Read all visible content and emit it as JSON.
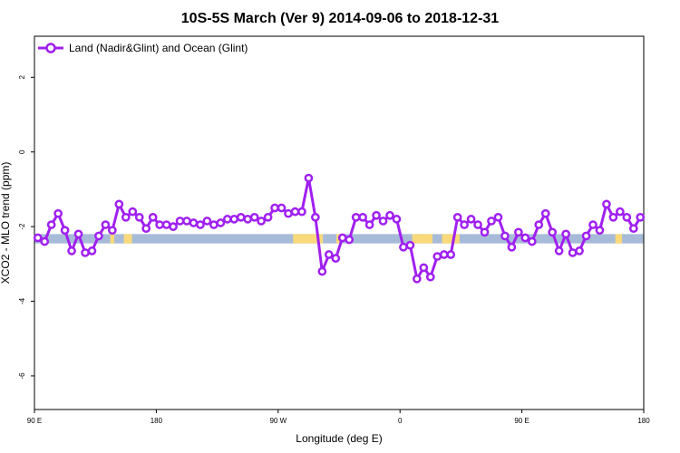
{
  "chart_data": {
    "type": "line",
    "title": "10S-5S March (Ver 9)   2014-09-06 to 2018-12-31",
    "xlabel": "Longitude (deg E)",
    "ylabel": "XCO2 - MLO trend (ppm)",
    "x_tick_positions": [
      90,
      180,
      270,
      360,
      450,
      540
    ],
    "x_tick_labels": [
      "90 E",
      "180",
      "90 W",
      "0",
      "90 E",
      "180"
    ],
    "xlim": [
      90,
      540
    ],
    "y_ticks": [
      2,
      0,
      -2,
      -4,
      -6
    ],
    "y_tick_labels": [
      "2",
      "0",
      "-2",
      "-4",
      "-6"
    ],
    "ylim": [
      -6.9,
      3.1
    ],
    "legend": {
      "position": "top-left"
    },
    "colors": {
      "series": "#a020f0",
      "ocean_band": "#a7bbd9",
      "land_band": "#f9d97a"
    },
    "land_mask": {
      "y_range": [
        -2.45,
        -2.2
      ],
      "land_segments": [
        [
          146,
          149
        ],
        [
          156,
          162
        ],
        [
          281,
          303
        ],
        [
          313,
          317
        ],
        [
          369,
          384
        ],
        [
          391,
          404
        ],
        [
          519,
          524
        ],
        [
          548,
          554
        ]
      ]
    },
    "series": [
      {
        "name": "Land (Nadir&Glint) and Ocean (Glint)",
        "x": [
          92.5,
          97.5,
          102.5,
          107.5,
          112.5,
          117.5,
          122.5,
          127.5,
          132.5,
          137.5,
          142.5,
          147.5,
          152.5,
          157.5,
          162.5,
          167.5,
          172.5,
          177.5,
          182.5,
          187.5,
          192.5,
          197.5,
          202.5,
          207.5,
          212.5,
          217.5,
          222.5,
          227.5,
          232.5,
          237.5,
          242.5,
          247.5,
          252.5,
          257.5,
          262.5,
          267.5,
          272.5,
          277.5,
          282.5,
          287.5,
          292.5,
          297.5,
          302.5,
          307.5,
          312.5,
          317.5,
          322.5,
          327.5,
          332.5,
          337.5,
          342.5,
          347.5,
          352.5,
          357.5,
          362.5,
          367.5,
          372.5,
          377.5,
          382.5,
          387.5,
          392.5,
          397.5,
          402.5,
          407.5,
          412.5,
          417.5,
          422.5,
          427.5,
          432.5,
          437.5,
          442.5,
          447.5,
          452.5,
          457.5,
          462.5,
          467.5,
          472.5,
          477.5,
          482.5,
          487.5,
          492.5,
          497.5,
          502.5,
          507.5,
          512.5,
          517.5,
          522.5,
          527.5,
          532.5,
          537.5
        ],
        "y": [
          -2.3,
          -2.4,
          -1.95,
          -1.65,
          -2.1,
          -2.65,
          -2.2,
          -2.7,
          -2.65,
          -2.25,
          -1.95,
          -2.1,
          -1.4,
          -1.75,
          -1.6,
          -1.75,
          -2.05,
          -1.75,
          -1.95,
          -1.95,
          -2.0,
          -1.85,
          -1.85,
          -1.9,
          -1.95,
          -1.85,
          -1.95,
          -1.9,
          -1.8,
          -1.8,
          -1.75,
          -1.8,
          -1.75,
          -1.85,
          -1.75,
          -1.5,
          -1.5,
          -1.65,
          -1.6,
          -1.6,
          -0.7,
          -1.75,
          -3.2,
          -2.75,
          -2.85,
          -2.3,
          -2.35,
          -1.75,
          -1.75,
          -1.95,
          -1.7,
          -1.85,
          -1.7,
          -1.8,
          -2.55,
          -2.5,
          -3.4,
          -3.1,
          -3.35,
          -2.8,
          -2.75,
          -2.75,
          -1.75,
          -1.95,
          -1.8,
          -1.95,
          -2.15,
          -1.85,
          -1.75,
          -2.25,
          -2.55,
          -2.15,
          -2.3,
          -2.4,
          -1.95,
          -1.65,
          -2.15,
          -2.65,
          -2.2,
          -2.7,
          -2.65,
          -2.25,
          -1.95,
          -2.1,
          -1.4,
          -1.75,
          -1.6,
          -1.75,
          -2.05,
          -1.75
        ]
      }
    ]
  }
}
